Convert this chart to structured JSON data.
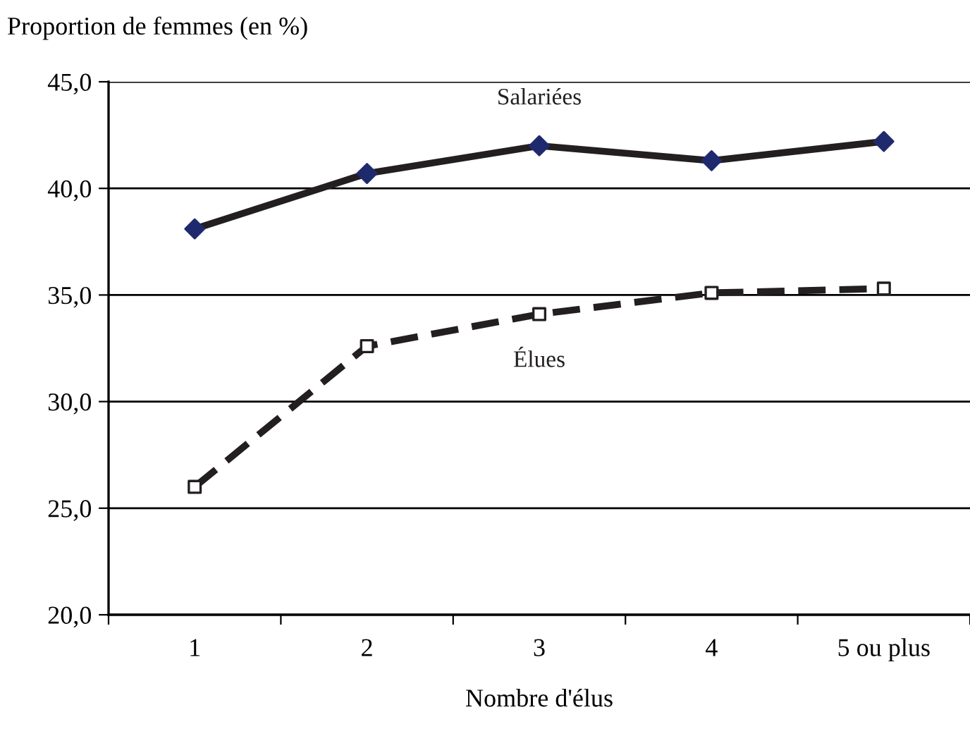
{
  "chart_data": {
    "type": "line",
    "ylabel": "Proportion de femmes (en %)",
    "xlabel": "Nombre d'élus",
    "categories": [
      "1",
      "2",
      "3",
      "4",
      "5 ou plus"
    ],
    "series": [
      {
        "name": "Salariées",
        "color": "#231f20",
        "colors": [
          "#1f2a6e",
          "#1f2a6e",
          "#1f2a6e",
          "#1f2a6e",
          "#1f2a6e"
        ],
        "marker": "diamond",
        "line_style": "solid",
        "values": [
          38.1,
          40.7,
          42.0,
          41.3,
          42.2
        ]
      },
      {
        "name": "Élues",
        "color": "#231f20",
        "colors": [
          "#ffffff",
          "#ffffff",
          "#ffffff",
          "#ffffff",
          "#ffffff"
        ],
        "marker": "square",
        "line_style": "dashed",
        "values": [
          26.0,
          32.6,
          34.1,
          35.1,
          35.3
        ]
      }
    ],
    "ylim": [
      20,
      45
    ],
    "yticks": [
      {
        "value": 20,
        "label": "20,0"
      },
      {
        "value": 25,
        "label": "25,0"
      },
      {
        "value": 30,
        "label": "30,0"
      },
      {
        "value": 35,
        "label": "35,0"
      },
      {
        "value": 40,
        "label": "40,0"
      },
      {
        "value": 45,
        "label": "45,0"
      }
    ],
    "grid": "y",
    "legend": false
  }
}
